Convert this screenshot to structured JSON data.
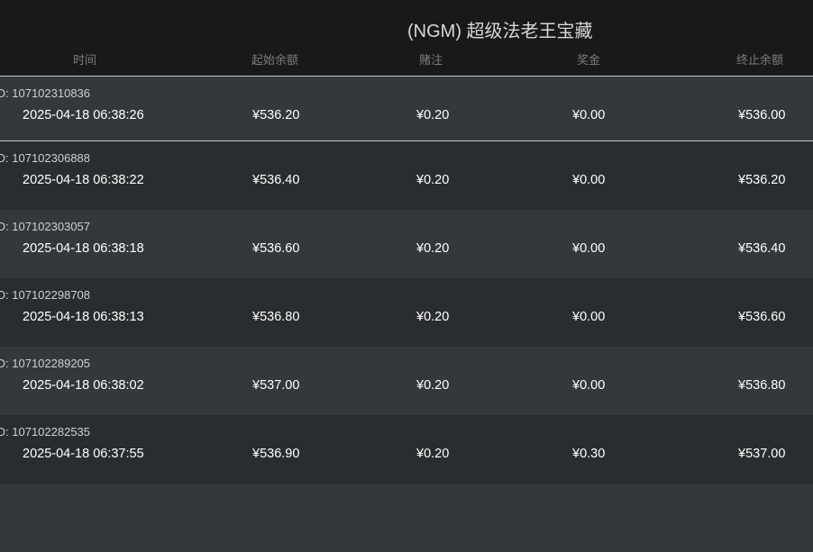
{
  "title": "(NGM) 超级法老王宝藏",
  "headers": [
    "时间",
    "起始余额",
    "赌注",
    "奖金",
    "终止余额"
  ],
  "id_label": "ID:",
  "rows": [
    {
      "id": "107102310836",
      "time": "2025-04-18 06:38:26",
      "start": "¥536.20",
      "bet": "¥0.20",
      "win": "¥0.00",
      "end": "¥536.00"
    },
    {
      "id": "107102306888",
      "time": "2025-04-18 06:38:22",
      "start": "¥536.40",
      "bet": "¥0.20",
      "win": "¥0.00",
      "end": "¥536.20"
    },
    {
      "id": "107102303057",
      "time": "2025-04-18 06:38:18",
      "start": "¥536.60",
      "bet": "¥0.20",
      "win": "¥0.00",
      "end": "¥536.40"
    },
    {
      "id": "107102298708",
      "time": "2025-04-18 06:38:13",
      "start": "¥536.80",
      "bet": "¥0.20",
      "win": "¥0.00",
      "end": "¥536.60"
    },
    {
      "id": "107102289205",
      "time": "2025-04-18 06:38:02",
      "start": "¥537.00",
      "bet": "¥0.20",
      "win": "¥0.00",
      "end": "¥536.80"
    },
    {
      "id": "107102282535",
      "time": "2025-04-18 06:37:55",
      "start": "¥536.90",
      "bet": "¥0.20",
      "win": "¥0.30",
      "end": "¥537.00"
    }
  ]
}
